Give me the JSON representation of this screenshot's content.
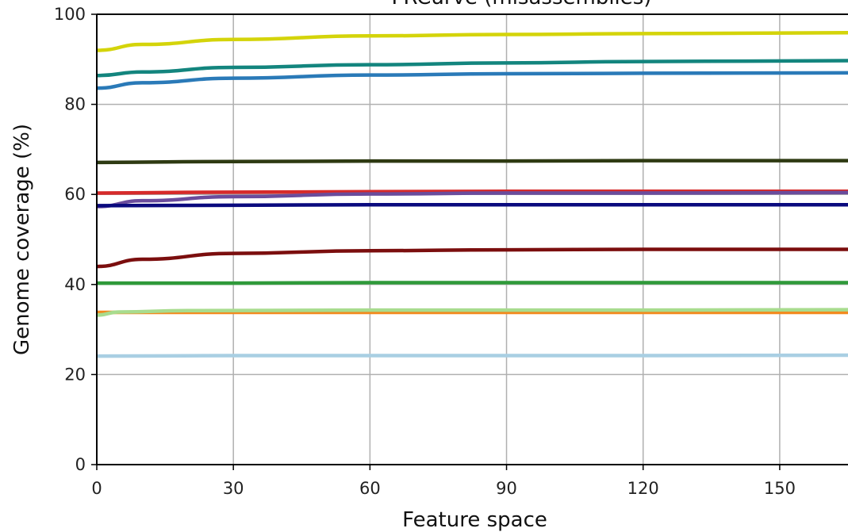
{
  "chart_data": {
    "type": "line",
    "title": "FRCurve (misassemblies)",
    "xlabel": "Feature space",
    "ylabel": "Genome coverage (%)",
    "xlim": [
      0,
      165
    ],
    "ylim": [
      0,
      100
    ],
    "xticks": [
      0,
      30,
      60,
      90,
      120,
      150
    ],
    "yticks": [
      0,
      20,
      40,
      60,
      80,
      100
    ],
    "grid": true,
    "series": [
      {
        "color": "#d4d40a",
        "x": [
          0,
          10,
          30,
          60,
          90,
          120,
          165
        ],
        "y": [
          92.0,
          93.3,
          94.4,
          95.2,
          95.5,
          95.7,
          95.9
        ]
      },
      {
        "color": "#13857e",
        "x": [
          0,
          10,
          30,
          60,
          90,
          120,
          165
        ],
        "y": [
          86.4,
          87.2,
          88.2,
          88.8,
          89.2,
          89.5,
          89.7
        ]
      },
      {
        "color": "#2a7ab8",
        "x": [
          0,
          10,
          30,
          60,
          90,
          120,
          165
        ],
        "y": [
          83.6,
          84.8,
          85.8,
          86.5,
          86.8,
          86.9,
          87.0
        ]
      },
      {
        "color": "#2e3a12",
        "x": [
          0,
          30,
          60,
          90,
          120,
          165
        ],
        "y": [
          67.1,
          67.3,
          67.4,
          67.4,
          67.5,
          67.5
        ]
      },
      {
        "color": "#d62a2a",
        "x": [
          0,
          30,
          60,
          90,
          120,
          165
        ],
        "y": [
          60.3,
          60.5,
          60.6,
          60.7,
          60.7,
          60.7
        ]
      },
      {
        "color": "#6a4c9c",
        "x": [
          0,
          10,
          30,
          60,
          90,
          120,
          165
        ],
        "y": [
          57.3,
          58.6,
          59.5,
          60.1,
          60.3,
          60.3,
          60.4
        ]
      },
      {
        "color": "#0a0a7e",
        "x": [
          0,
          30,
          60,
          90,
          120,
          165
        ],
        "y": [
          57.5,
          57.6,
          57.7,
          57.7,
          57.7,
          57.7
        ]
      },
      {
        "color": "#7b0e0e",
        "x": [
          0,
          10,
          30,
          60,
          90,
          120,
          165
        ],
        "y": [
          44.0,
          45.6,
          46.9,
          47.5,
          47.7,
          47.8,
          47.8
        ]
      },
      {
        "color": "#2f9a3a",
        "x": [
          0,
          30,
          60,
          90,
          120,
          165
        ],
        "y": [
          40.3,
          40.3,
          40.4,
          40.4,
          40.4,
          40.4
        ]
      },
      {
        "color": "#f28a1f",
        "x": [
          0,
          30,
          60,
          90,
          120,
          165
        ],
        "y": [
          33.8,
          33.8,
          33.8,
          33.8,
          33.8,
          33.8
        ]
      },
      {
        "color": "#a8dc8e",
        "x": [
          0,
          5,
          20,
          60,
          120,
          165
        ],
        "y": [
          33.2,
          33.9,
          34.2,
          34.3,
          34.3,
          34.4
        ]
      },
      {
        "color": "#a9cfe3",
        "x": [
          0,
          30,
          60,
          90,
          120,
          165
        ],
        "y": [
          24.1,
          24.2,
          24.2,
          24.2,
          24.2,
          24.3
        ]
      }
    ]
  }
}
